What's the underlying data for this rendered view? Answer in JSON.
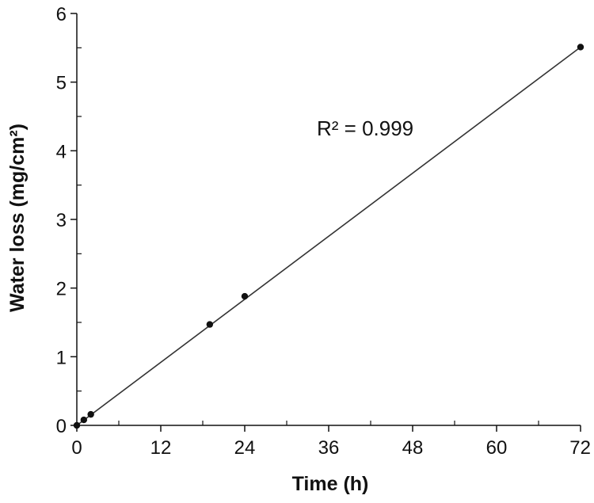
{
  "chart_data": {
    "type": "scatter",
    "xlabel": "Time (h)",
    "ylabel": "Water loss (mg/cm²)",
    "xlim": [
      0,
      72
    ],
    "ylim": [
      0,
      6
    ],
    "x_ticks": [
      "0",
      "12",
      "24",
      "36",
      "48",
      "60",
      "72"
    ],
    "y_ticks": [
      "0",
      "1",
      "2",
      "3",
      "4",
      "5",
      "6"
    ],
    "series": [
      {
        "x": [
          0,
          1,
          2,
          19,
          24,
          72
        ],
        "y": [
          0.0,
          0.08,
          0.16,
          1.47,
          1.88,
          5.51
        ]
      }
    ],
    "trendline": {
      "type": "linear",
      "x": [
        0,
        72
      ],
      "y": [
        0.0,
        5.51
      ]
    },
    "annotation": "R² = 0.999",
    "grid": false,
    "colors": {
      "axis": "#111111",
      "marker": "#111111",
      "trendline": "#333333"
    }
  }
}
